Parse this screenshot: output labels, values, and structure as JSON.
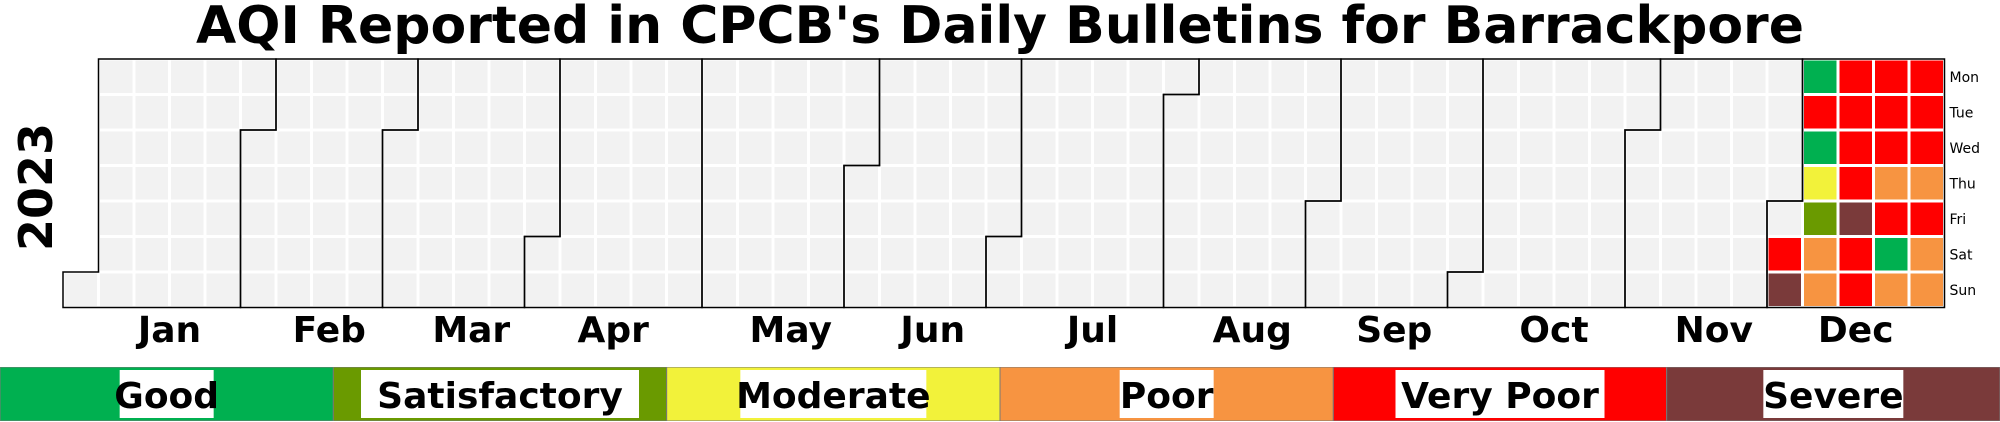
{
  "chart_data": {
    "type": "heatmap",
    "title": "AQI Reported in CPCB's Daily Bulletins for Barrackpore",
    "year_label": "2023",
    "months": [
      "Jan",
      "Feb",
      "Mar",
      "Apr",
      "May",
      "Jun",
      "Jul",
      "Aug",
      "Sep",
      "Oct",
      "Nov",
      "Dec"
    ],
    "weekdays": [
      "Mon",
      "Tue",
      "Wed",
      "Thu",
      "Fri",
      "Sat",
      "Sun"
    ],
    "categories": [
      "Good",
      "Satisfactory",
      "Moderate",
      "Poor",
      "Very Poor",
      "Severe"
    ],
    "colors": {
      "Good": "#00b050",
      "Satisfactory": "#6a9a00",
      "Moderate": "#f2f23a",
      "Poor": "#f79441",
      "Very Poor": "#ff0000",
      "Severe": "#7a3a3a",
      "No data": "#f2f2f2"
    },
    "data": [
      {
        "date": "2023-12-02",
        "category": "Very Poor"
      },
      {
        "date": "2023-12-03",
        "category": "Severe"
      },
      {
        "date": "2023-12-04",
        "category": "Good"
      },
      {
        "date": "2023-12-05",
        "category": "Very Poor"
      },
      {
        "date": "2023-12-06",
        "category": "Good"
      },
      {
        "date": "2023-12-07",
        "category": "Moderate"
      },
      {
        "date": "2023-12-08",
        "category": "Satisfactory"
      },
      {
        "date": "2023-12-09",
        "category": "Poor"
      },
      {
        "date": "2023-12-10",
        "category": "Poor"
      },
      {
        "date": "2023-12-11",
        "category": "Very Poor"
      },
      {
        "date": "2023-12-12",
        "category": "Very Poor"
      },
      {
        "date": "2023-12-13",
        "category": "Very Poor"
      },
      {
        "date": "2023-12-14",
        "category": "Very Poor"
      },
      {
        "date": "2023-12-15",
        "category": "Severe"
      },
      {
        "date": "2023-12-16",
        "category": "Very Poor"
      },
      {
        "date": "2023-12-17",
        "category": "Very Poor"
      },
      {
        "date": "2023-12-18",
        "category": "Very Poor"
      },
      {
        "date": "2023-12-19",
        "category": "Very Poor"
      },
      {
        "date": "2023-12-20",
        "category": "Very Poor"
      },
      {
        "date": "2023-12-21",
        "category": "Poor"
      },
      {
        "date": "2023-12-22",
        "category": "Very Poor"
      },
      {
        "date": "2023-12-23",
        "category": "Good"
      },
      {
        "date": "2023-12-24",
        "category": "Poor"
      },
      {
        "date": "2023-12-25",
        "category": "Very Poor"
      },
      {
        "date": "2023-12-26",
        "category": "Very Poor"
      },
      {
        "date": "2023-12-27",
        "category": "Very Poor"
      },
      {
        "date": "2023-12-28",
        "category": "Poor"
      },
      {
        "date": "2023-12-29",
        "category": "Very Poor"
      },
      {
        "date": "2023-12-30",
        "category": "Poor"
      },
      {
        "date": "2023-12-31",
        "category": "Poor"
      }
    ]
  }
}
